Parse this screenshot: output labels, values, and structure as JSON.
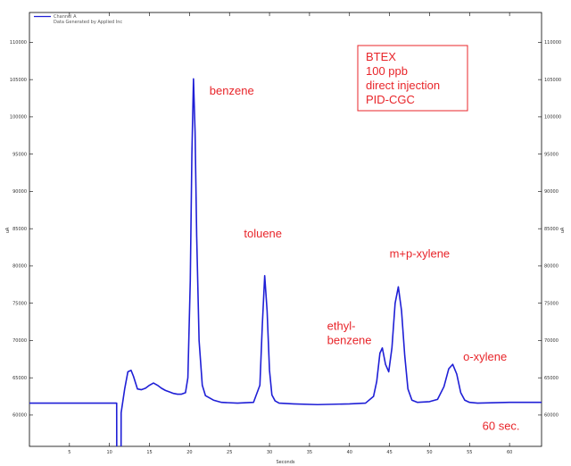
{
  "chart_data": {
    "type": "line",
    "xlabel": "Seconds",
    "ylabel": "uA",
    "xlim": [
      0,
      64
    ],
    "ylim": [
      55800,
      114000
    ],
    "x_ticks": [
      5,
      10,
      15,
      20,
      25,
      30,
      35,
      40,
      45,
      50,
      55,
      60
    ],
    "y_ticks": [
      60000,
      65000,
      70000,
      75000,
      80000,
      85000,
      90000,
      95000,
      100000,
      105000,
      110000
    ],
    "x_tick_labels": [
      "5",
      "10",
      "15",
      "20",
      "25",
      "30",
      "35",
      "40",
      "45",
      "50",
      "55",
      "60"
    ],
    "y_tick_labels": [
      "60000",
      "65000",
      "70000",
      "75000",
      "80000",
      "85000",
      "90000",
      "95000",
      "100000",
      "105000",
      "110000"
    ],
    "grid": false,
    "legend_position": "top-left",
    "legend": [
      {
        "text": "Channel A",
        "color": "#1f1fd6"
      },
      {
        "text": "Data Generated by Applied Inc",
        "color": ""
      }
    ],
    "series": [
      {
        "name": "Channel A",
        "color": "#1f1fd6",
        "x": [
          0,
          10.9,
          10.91,
          11.45,
          11.46,
          11.9,
          12.3,
          12.7,
          13.0,
          13.5,
          14.0,
          14.5,
          15.0,
          15.5,
          16.0,
          16.5,
          17.0,
          17.5,
          18.0,
          18.5,
          19.0,
          19.5,
          19.8,
          20.1,
          20.3,
          20.5,
          20.7,
          20.9,
          21.2,
          21.6,
          22.0,
          23.0,
          24.0,
          26.0,
          28.0,
          28.8,
          29.1,
          29.4,
          29.7,
          30.0,
          30.3,
          30.7,
          31.2,
          33.0,
          36.0,
          40.0,
          42.0,
          43.0,
          43.4,
          43.8,
          44.1,
          44.5,
          44.9,
          45.3,
          45.7,
          46.1,
          46.5,
          46.9,
          47.3,
          47.8,
          48.5,
          50.0,
          51.0,
          51.8,
          52.4,
          52.9,
          53.4,
          53.9,
          54.4,
          55.0,
          56.0,
          60.0,
          64.0
        ],
        "y": [
          61600,
          61600,
          55000,
          55000,
          60300,
          63500,
          65800,
          66000,
          65200,
          63500,
          63400,
          63600,
          64000,
          64300,
          64000,
          63600,
          63300,
          63100,
          62900,
          62800,
          62800,
          63000,
          65000,
          78000,
          95000,
          105100,
          98000,
          84000,
          70000,
          64000,
          62600,
          62000,
          61700,
          61600,
          61700,
          64000,
          72000,
          78700,
          74000,
          66000,
          62700,
          61900,
          61600,
          61500,
          61400,
          61500,
          61600,
          62500,
          64500,
          68300,
          69000,
          66800,
          65800,
          69000,
          75000,
          77200,
          74000,
          68000,
          63500,
          62000,
          61700,
          61800,
          62100,
          63800,
          66200,
          66800,
          65500,
          63000,
          62000,
          61700,
          61600,
          61700,
          61700
        ]
      }
    ],
    "annotations": [
      {
        "text": "benzene",
        "x": 22.5,
        "y": 103000,
        "color": "#e8252a"
      },
      {
        "text": "toluene",
        "x": 26.8,
        "y": 83800,
        "color": "#e8252a"
      },
      {
        "text": "ethyl-",
        "x": 37.2,
        "y": 71400,
        "color": "#e8252a"
      },
      {
        "text": "benzene",
        "x": 37.2,
        "y": 69500,
        "color": "#e8252a"
      },
      {
        "text": "m+p-xylene",
        "x": 45.0,
        "y": 81100,
        "color": "#e8252a"
      },
      {
        "text": "o-xylene",
        "x": 54.2,
        "y": 67300,
        "color": "#e8252a"
      },
      {
        "text": "60 sec.",
        "x": 56.6,
        "y": 58000,
        "color": "#e8252a"
      }
    ],
    "info_box": {
      "lines": [
        "BTEX",
        "100 ppb",
        "direct injection",
        "PID-CGC"
      ],
      "color": "#e8252a",
      "border_color": "#e8252a",
      "position": "top-right"
    }
  }
}
